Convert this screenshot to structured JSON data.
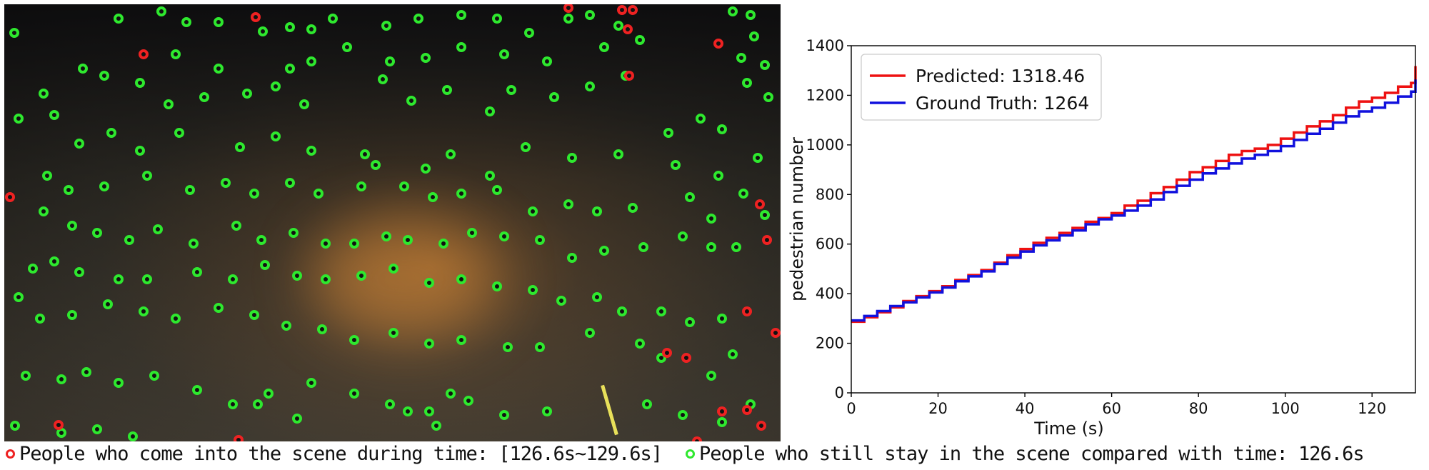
{
  "scene": {
    "red_marker_label": "People who come into the scene during time: [126.6s~129.6s]",
    "green_marker_label": "People who still stay in the scene compared with time: 126.6s",
    "colors": {
      "new_person": "#ee2222",
      "staying_person": "#2ee82e"
    }
  },
  "chart_data": {
    "type": "line",
    "title": "",
    "xlabel": "Time (s)",
    "ylabel": "pedestrian number",
    "xlim": [
      0,
      130
    ],
    "ylim": [
      0,
      1400
    ],
    "xticks": [
      0,
      20,
      40,
      60,
      80,
      100,
      120
    ],
    "yticks": [
      0,
      200,
      400,
      600,
      800,
      1000,
      1200,
      1400
    ],
    "legend_position": "top-left",
    "grid": false,
    "series": [
      {
        "name": "Predicted: 1318.46",
        "color": "#ee1111",
        "step": true,
        "x": [
          0,
          3,
          6,
          9,
          12,
          15,
          18,
          21,
          24,
          27,
          30,
          33,
          36,
          39,
          42,
          45,
          48,
          51,
          54,
          57,
          60,
          63,
          66,
          69,
          72,
          75,
          78,
          81,
          84,
          87,
          90,
          93,
          96,
          99,
          102,
          105,
          108,
          111,
          114,
          117,
          120,
          123,
          126,
          129,
          130
        ],
        "y": [
          287,
          305,
          325,
          345,
          370,
          390,
          410,
          430,
          455,
          475,
          495,
          525,
          555,
          580,
          605,
          625,
          645,
          665,
          690,
          705,
          725,
          755,
          775,
          805,
          830,
          860,
          890,
          910,
          935,
          960,
          975,
          985,
          1000,
          1025,
          1050,
          1075,
          1095,
          1120,
          1150,
          1175,
          1190,
          1210,
          1235,
          1250,
          1318
        ]
      },
      {
        "name": "Ground Truth: 1264",
        "color": "#1111dd",
        "step": true,
        "x": [
          0,
          3,
          6,
          9,
          12,
          15,
          18,
          21,
          24,
          27,
          30,
          33,
          36,
          39,
          42,
          45,
          48,
          51,
          54,
          57,
          60,
          63,
          66,
          69,
          72,
          75,
          78,
          81,
          84,
          87,
          90,
          93,
          96,
          99,
          102,
          105,
          108,
          111,
          114,
          117,
          120,
          123,
          126,
          129,
          130
        ],
        "y": [
          292,
          310,
          330,
          350,
          365,
          385,
          405,
          425,
          450,
          470,
          490,
          520,
          545,
          570,
          595,
          615,
          635,
          655,
          680,
          700,
          715,
          735,
          755,
          780,
          810,
          835,
          860,
          885,
          905,
          925,
          945,
          960,
          975,
          995,
          1020,
          1045,
          1065,
          1090,
          1115,
          1135,
          1150,
          1170,
          1195,
          1215,
          1264
        ]
      }
    ]
  }
}
